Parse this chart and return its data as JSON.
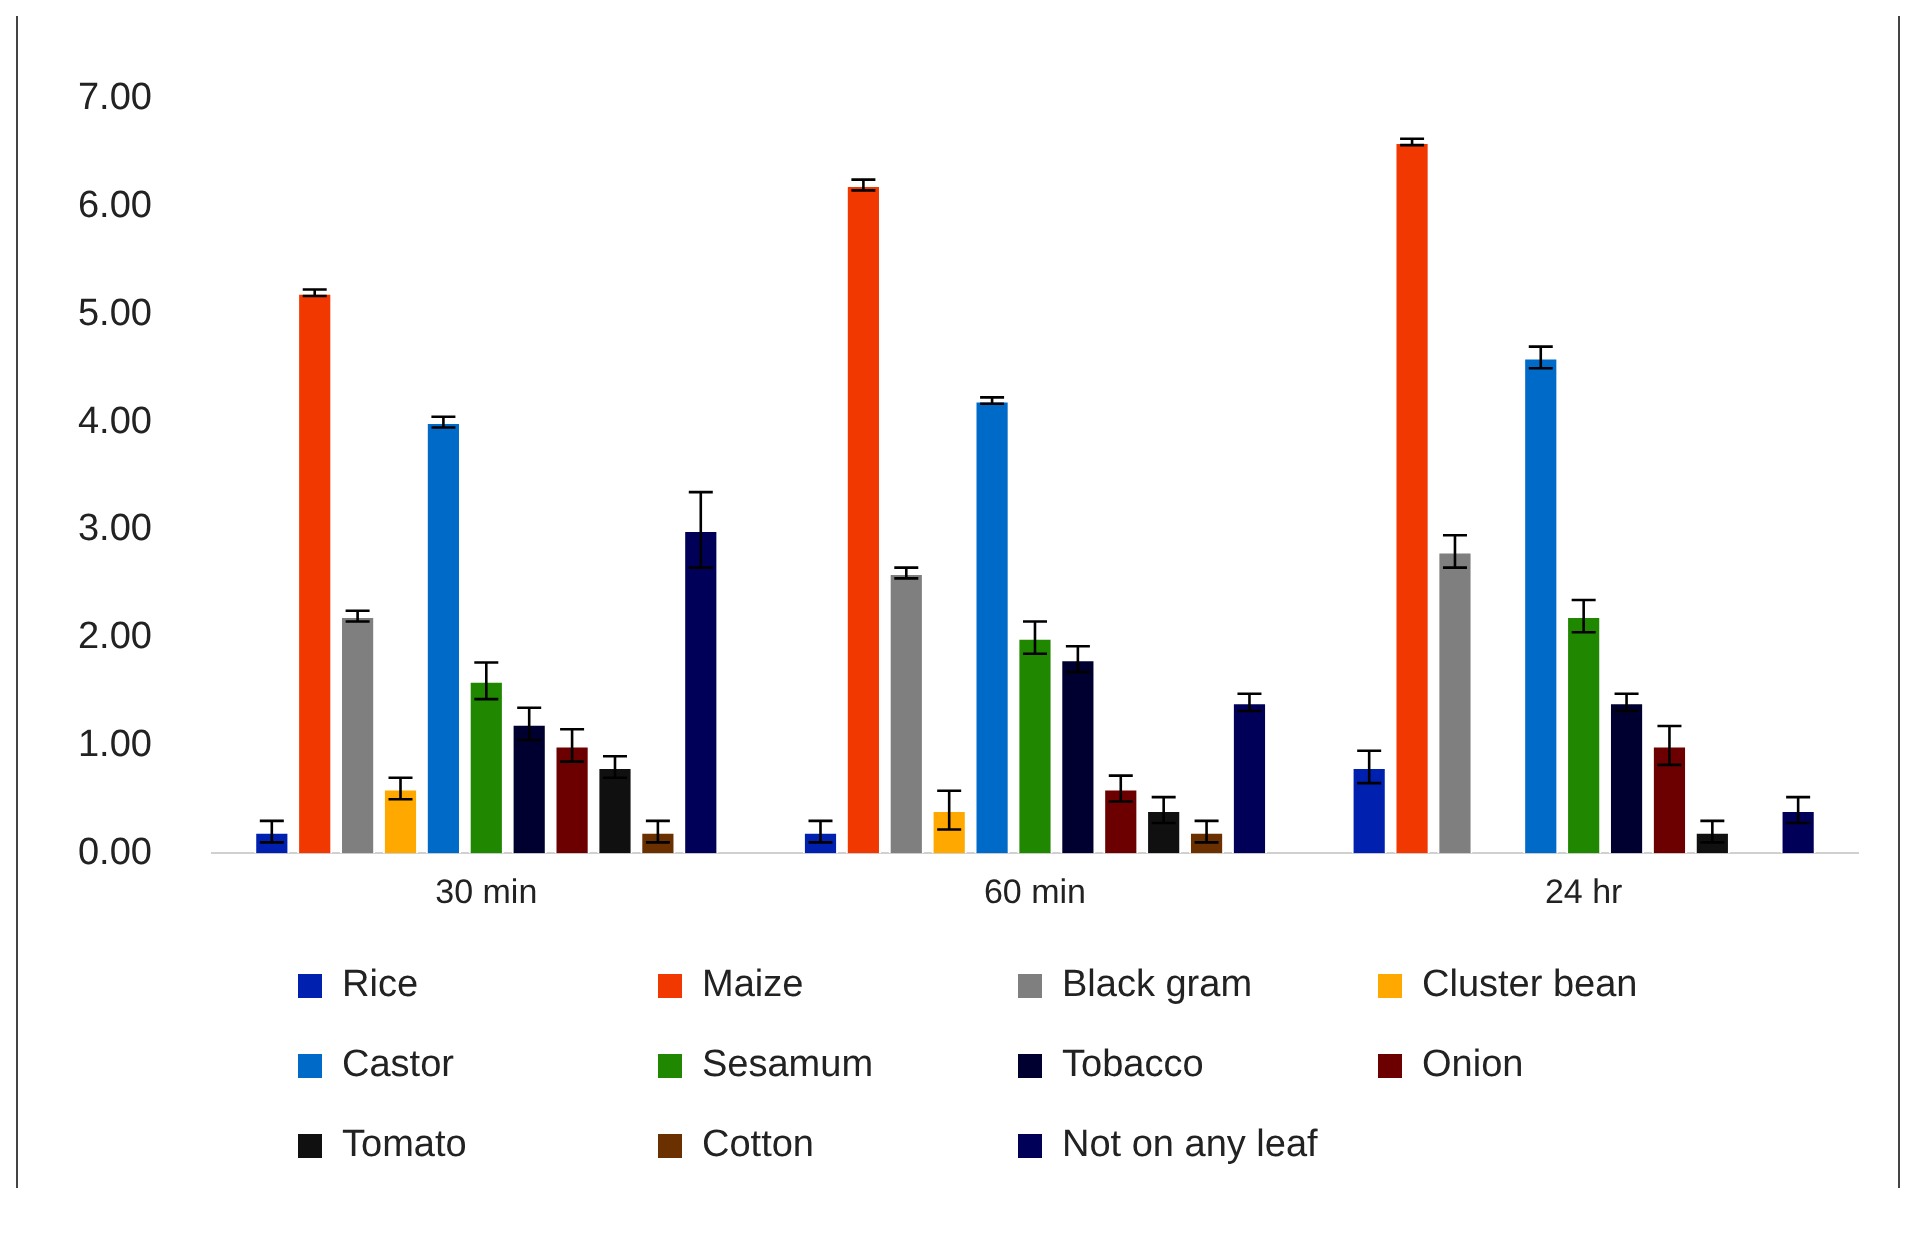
{
  "chart_data": {
    "type": "bar",
    "categories": [
      "30 min",
      "60 min",
      "24 hr"
    ],
    "ylim": [
      0,
      7
    ],
    "yticks": [
      {
        "value": 0,
        "label": "0.00"
      },
      {
        "value": 1,
        "label": "1.00"
      },
      {
        "value": 2,
        "label": "2.00"
      },
      {
        "value": 3,
        "label": "3.00"
      },
      {
        "value": 4,
        "label": "4.00"
      },
      {
        "value": 5,
        "label": "5.00"
      },
      {
        "value": 6,
        "label": "6.00"
      },
      {
        "value": 7,
        "label": "7.00"
      }
    ],
    "grid": false,
    "legend": "bottom",
    "series": [
      {
        "name": "Rice",
        "color": "#0020b0",
        "values": [
          0.2,
          0.2,
          0.8
        ],
        "errors": [
          0.1,
          0.1,
          0.15
        ]
      },
      {
        "name": "Maize",
        "color": "#f03800",
        "values": [
          5.2,
          6.2,
          6.6
        ],
        "errors": [
          0.03,
          0.05,
          0.03
        ]
      },
      {
        "name": "Black gram",
        "color": "#7f7f7f",
        "values": [
          2.2,
          2.6,
          2.8
        ],
        "errors": [
          0.05,
          0.05,
          0.15
        ]
      },
      {
        "name": "Cluster bean",
        "color": "#ffa800",
        "values": [
          0.6,
          0.4,
          0
        ],
        "errors": [
          0.1,
          0.18,
          null
        ]
      },
      {
        "name": "Castor",
        "color": "#006ac8",
        "values": [
          4.0,
          4.2,
          4.6
        ],
        "errors": [
          0.05,
          0.03,
          0.1
        ]
      },
      {
        "name": "Sesamum",
        "color": "#208800",
        "values": [
          1.6,
          2.0,
          2.2
        ],
        "errors": [
          0.17,
          0.15,
          0.15
        ]
      },
      {
        "name": "Tobacco",
        "color": "#000030",
        "values": [
          1.2,
          1.8,
          1.4
        ],
        "errors": [
          0.15,
          0.12,
          0.08
        ]
      },
      {
        "name": "Onion",
        "color": "#6c0000",
        "values": [
          1.0,
          0.6,
          1.0
        ],
        "errors": [
          0.15,
          0.12,
          0.18
        ]
      },
      {
        "name": "Tomato",
        "color": "#101010",
        "values": [
          0.8,
          0.4,
          0.2
        ],
        "errors": [
          0.1,
          0.12,
          0.1
        ]
      },
      {
        "name": "Cotton",
        "color": "#6a3000",
        "values": [
          0.2,
          0.2,
          0
        ],
        "errors": [
          0.1,
          0.1,
          null
        ]
      },
      {
        "name": "Not on any leaf",
        "color": "#000058",
        "values": [
          3.0,
          1.4,
          0.4
        ],
        "errors": [
          0.35,
          0.08,
          0.12
        ]
      }
    ]
  }
}
